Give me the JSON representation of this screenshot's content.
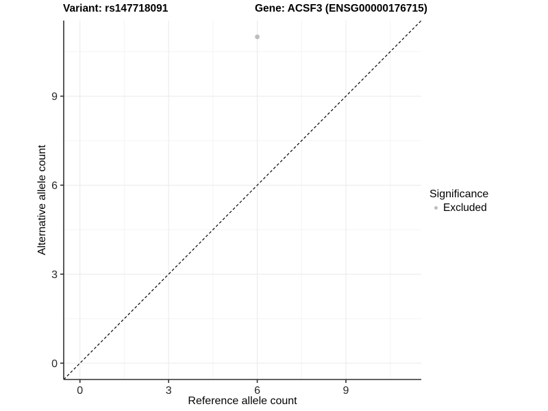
{
  "figure": {
    "title_left": "Variant: rs147718091",
    "title_right": "Gene: ACSF3 (ENSG00000176715)"
  },
  "chart_data": {
    "type": "scatter",
    "title": "Variant: rs147718091   Gene: ACSF3 (ENSG00000176715)",
    "xlabel": "Reference allele count",
    "ylabel": "Alternative allele count",
    "xlim": [
      -0.55,
      11.55
    ],
    "ylim": [
      -0.55,
      11.55
    ],
    "x_ticks": [
      0,
      3,
      6,
      9
    ],
    "y_ticks": [
      0,
      3,
      6,
      9
    ],
    "x_minor_ticks": [
      1.5,
      4.5,
      7.5,
      10.5
    ],
    "y_minor_ticks": [
      1.5,
      4.5,
      7.5,
      10.5
    ],
    "grid": "major and minor gridlines on white background",
    "reference_line": {
      "kind": "identity",
      "slope": 1,
      "intercept": 0,
      "style": "dashed",
      "color": "#000000"
    },
    "series": [
      {
        "name": "Excluded",
        "color": "#bdbdbd",
        "marker": "circle",
        "points": [
          {
            "x": 6,
            "y": 11
          }
        ]
      }
    ],
    "legend": {
      "title": "Significance",
      "position": "right",
      "items": [
        {
          "label": "Excluded",
          "color": "#bdbdbd",
          "marker": "circle"
        }
      ]
    }
  },
  "colors": {
    "grid_major": "#e9e9e9",
    "grid_minor": "#f4f4f4",
    "axis_line": "#2f2f2f",
    "tick_label": "#262626",
    "title_text": "#000000"
  }
}
